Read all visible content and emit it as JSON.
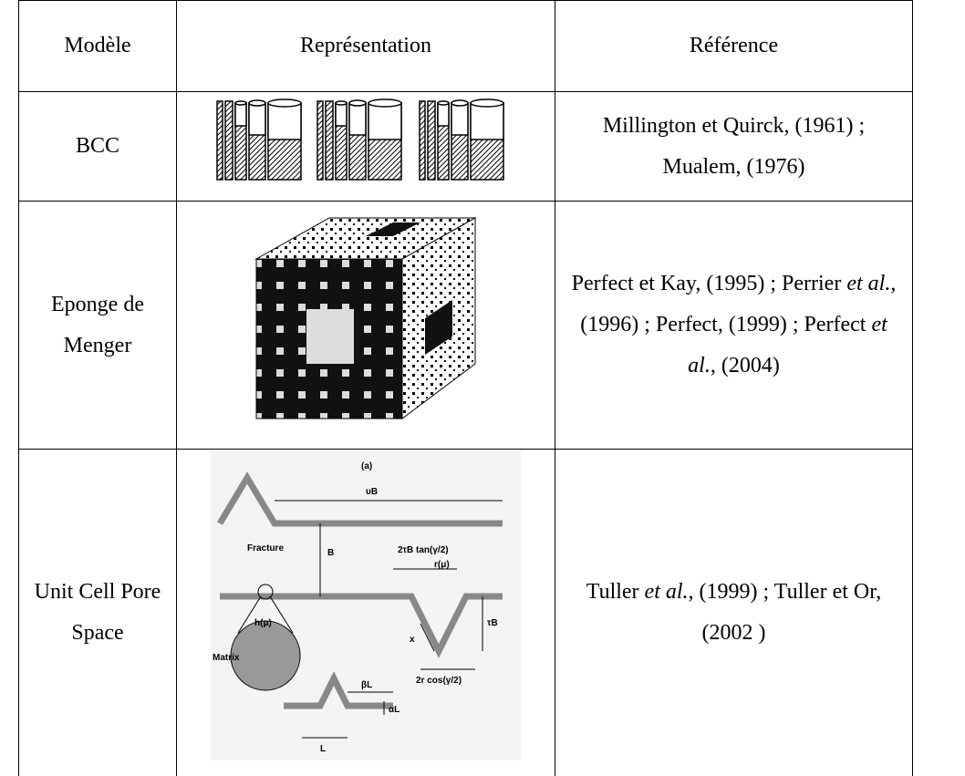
{
  "table": {
    "header": [
      "Modèle",
      "Représentation",
      "Référence"
    ],
    "rows": [
      {
        "model": "BCC",
        "reference": [
          "Millington et Quirck, (1961) ; Mualem, (1976)"
        ]
      },
      {
        "model": "Eponge de Menger",
        "reference": [
          "Perfect et Kay, (1995) ; Perrier ",
          "et al.",
          ", (1996) ; Perfect, (1999) ; Perfect ",
          "et al.",
          ", (2004)"
        ]
      },
      {
        "model": "Unit Cell Pore Space",
        "reference": [
          "Tuller ",
          "et al.",
          ", (1999) ; Tuller et Or, (2002 )"
        ],
        "labels": [
          "(a)",
          "υB",
          "Fracture",
          "B",
          "2τB tan(γ/2)",
          "r(μ)",
          "τB",
          "h(μ)",
          "x",
          "Matrix",
          "2r cos(γ/2)",
          "βL",
          "αL",
          "L"
        ]
      }
    ]
  }
}
